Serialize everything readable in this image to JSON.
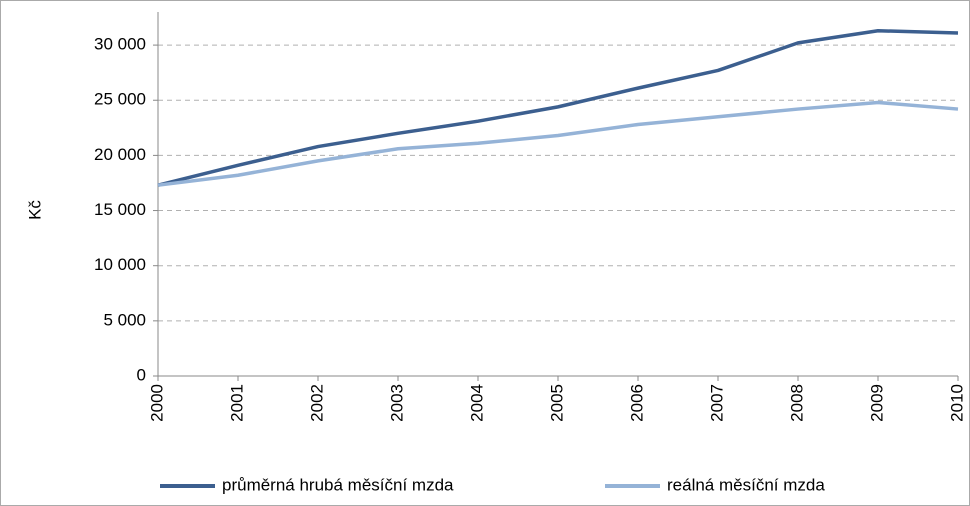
{
  "chart_data": {
    "type": "line",
    "y_label": "Kč",
    "x": [
      2000,
      2001,
      2002,
      2003,
      2004,
      2005,
      2006,
      2007,
      2008,
      2009,
      2010
    ],
    "xlim": [
      2000,
      2010
    ],
    "xticks": [
      2000,
      2001,
      2002,
      2003,
      2004,
      2005,
      2006,
      2007,
      2008,
      2009,
      2010
    ],
    "ylim": [
      0,
      33000
    ],
    "yticks": [
      0,
      {
        "value": 5000,
        "label": "5 000"
      },
      {
        "value": 10000,
        "label": "10 000"
      },
      {
        "value": 15000,
        "label": "15 000"
      },
      {
        "value": 20000,
        "label": "20 000"
      },
      {
        "value": 25000,
        "label": "25 000"
      },
      {
        "value": 30000,
        "label": "30 000"
      }
    ],
    "grid": true,
    "legend": "bottom",
    "series": [
      {
        "name": "průměrná hrubá měsíční mzda",
        "color": "#3c5f8f",
        "values": [
          17300,
          19100,
          20800,
          22000,
          23100,
          24400,
          26100,
          27700,
          30200,
          31300,
          31100
        ]
      },
      {
        "name": "reálná měsíční mzda",
        "color": "#95b3d7",
        "values": [
          17300,
          18200,
          19500,
          20600,
          21100,
          21800,
          22800,
          23500,
          24200,
          24800,
          24200
        ]
      }
    ]
  }
}
